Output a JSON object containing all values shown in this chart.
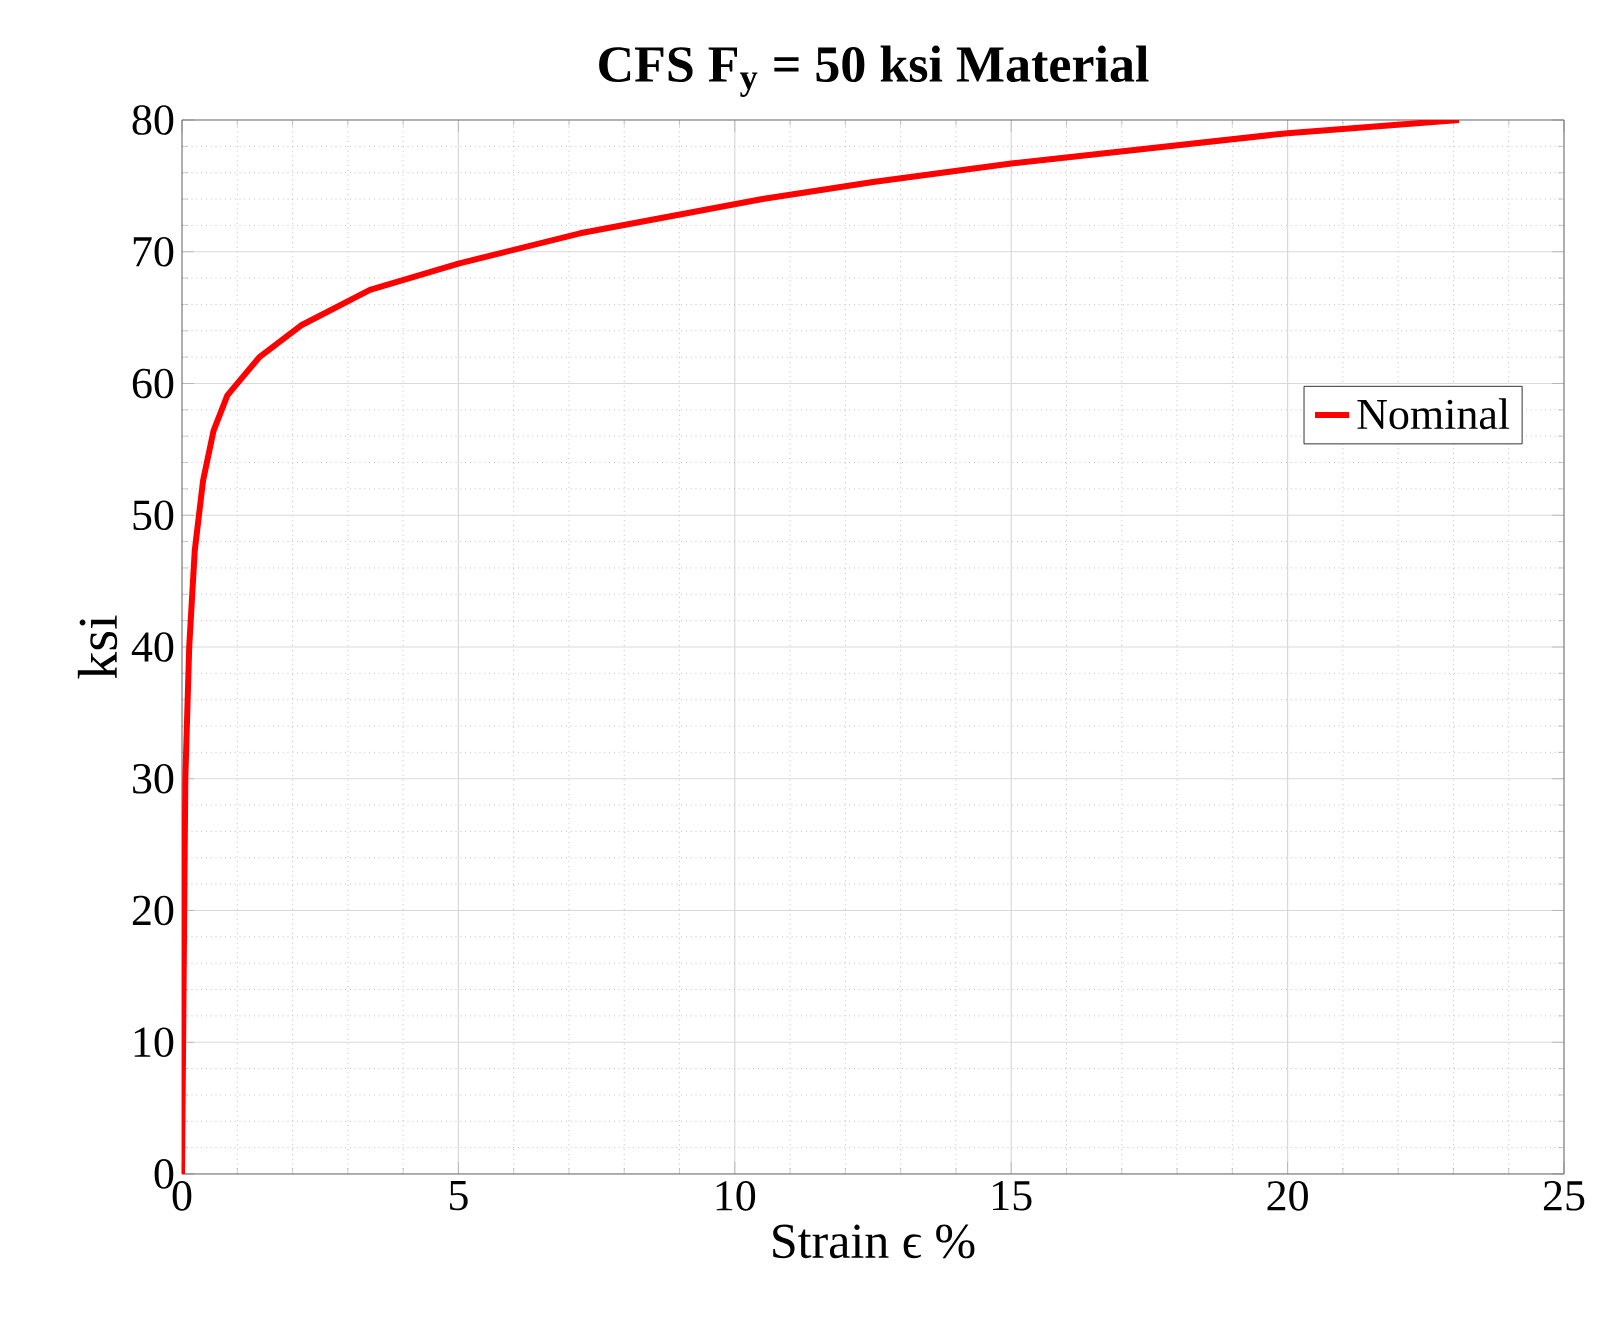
{
  "chart_data": {
    "type": "line",
    "title": "CFS F$_{y}$ = 50 ksi Material",
    "xlabel": "Strain ϵ %",
    "ylabel": "ksi",
    "xlim": [
      0,
      25
    ],
    "xticks": [
      0,
      5,
      10,
      15,
      20,
      25
    ],
    "ylim": [
      0,
      80
    ],
    "yticks": [
      0,
      10,
      20,
      30,
      40,
      50,
      60,
      70,
      80
    ],
    "grid": true,
    "legend": "right",
    "marker": "none",
    "line_style": "solid",
    "series": [
      {
        "name": "Nominal",
        "color": "#ff0000",
        "x": [
          0,
          0.06,
          0.13,
          0.23,
          0.38,
          0.57,
          0.82,
          1.4,
          2.15,
          3.4,
          5,
          7.2,
          10.5,
          12.5,
          15,
          20,
          23.1
        ],
        "values": [
          0,
          30,
          40,
          47.3,
          52.6,
          56.4,
          59.1,
          62,
          64.4,
          67.1,
          69.1,
          71.4,
          74,
          75.3,
          76.7,
          79,
          80
        ]
      }
    ]
  }
}
